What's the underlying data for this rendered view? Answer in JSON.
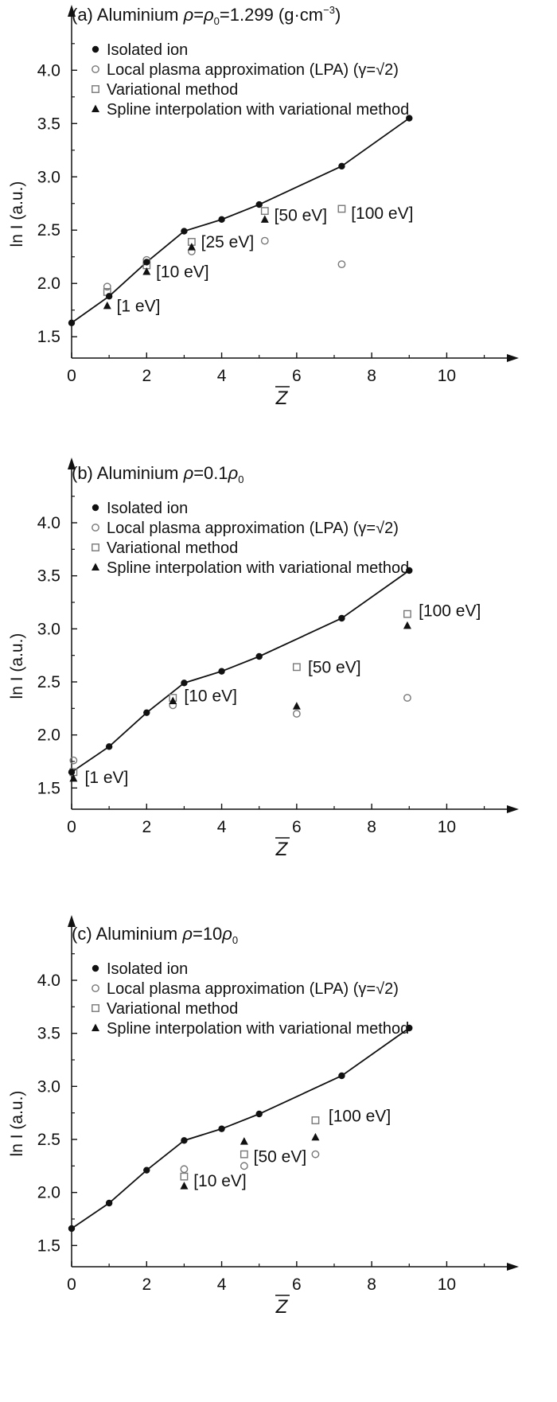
{
  "chart_data": [
    {
      "type": "scatter",
      "title_prefix": "(a) Aluminium",
      "title_formula": "=",
      "title_suffix": "=1.299 (g·cm",
      "title_exp": "−3",
      "title_close": ")",
      "rho_symbol": "ρ",
      "rho_sub": "0",
      "xlabel": "Z",
      "ylabel": "ln I (a.u.)",
      "xlim": [
        0,
        11.2
      ],
      "ylim": [
        1.3,
        4.45
      ],
      "xticks": [
        0,
        2,
        4,
        6,
        8,
        10
      ],
      "yticks": [
        "1.5",
        "2.0",
        "2.5",
        "3.0",
        "3.5",
        "4.0"
      ],
      "legend": {
        "isolated": "Isolated ion",
        "lpa": "Local plasma approximation (LPA) (γ=√2)",
        "variational": "Variational method",
        "spline": "Spline interpolation with variational method"
      },
      "series": {
        "isolated": [
          [
            0,
            1.63
          ],
          [
            1,
            1.88
          ],
          [
            2,
            2.2
          ],
          [
            3,
            2.49
          ],
          [
            4,
            2.6
          ],
          [
            5,
            2.74
          ],
          [
            7.2,
            3.1
          ],
          [
            9,
            3.55
          ]
        ],
        "lpa": [
          [
            0.95,
            1.97
          ],
          [
            2,
            2.22
          ],
          [
            3.2,
            2.3
          ],
          [
            5.15,
            2.4
          ],
          [
            7.2,
            2.18
          ]
        ],
        "variational": [
          [
            0.95,
            1.92
          ],
          [
            2,
            2.17
          ],
          [
            3.2,
            2.39
          ],
          [
            5.15,
            2.68
          ],
          [
            7.2,
            2.7
          ]
        ],
        "spline": [
          [
            0.95,
            1.79
          ],
          [
            2,
            2.11
          ],
          [
            3.2,
            2.34
          ],
          [
            5.15,
            2.6
          ]
        ]
      },
      "annotations": [
        {
          "text": "[1 eV]",
          "x": 1.2,
          "y": 1.79
        },
        {
          "text": "[10 eV]",
          "x": 2.25,
          "y": 2.11
        },
        {
          "text": "[25 eV]",
          "x": 3.45,
          "y": 2.39
        },
        {
          "text": "[50 eV]",
          "x": 5.4,
          "y": 2.64
        },
        {
          "text": "[100 eV]",
          "x": 7.45,
          "y": 2.66
        }
      ]
    },
    {
      "type": "scatter",
      "title_prefix": "(b) Aluminium",
      "title_formula": "=0.1",
      "rho_symbol": "ρ",
      "rho_sub": "0",
      "xlabel": "Z",
      "ylabel": "ln I (a.u.)",
      "xlim": [
        0,
        11.2
      ],
      "ylim": [
        1.3,
        4.45
      ],
      "xticks": [
        0,
        2,
        4,
        6,
        8,
        10
      ],
      "yticks": [
        "1.5",
        "2.0",
        "2.5",
        "3.0",
        "3.5",
        "4.0"
      ],
      "legend": {
        "isolated": "Isolated ion",
        "lpa": "Local plasma approximation (LPA) (γ=√2)",
        "variational": "Variational method",
        "spline": "Spline interpolation with variational method"
      },
      "series": {
        "isolated": [
          [
            0,
            1.65
          ],
          [
            1,
            1.89
          ],
          [
            2,
            2.21
          ],
          [
            3,
            2.49
          ],
          [
            4,
            2.6
          ],
          [
            5,
            2.74
          ],
          [
            7.2,
            3.1
          ],
          [
            9,
            3.55
          ]
        ],
        "lpa": [
          [
            0.05,
            1.76
          ],
          [
            2.7,
            2.28
          ],
          [
            6,
            2.2
          ],
          [
            8.95,
            2.35
          ]
        ],
        "variational": [
          [
            0.05,
            1.65
          ],
          [
            2.7,
            2.35
          ],
          [
            6,
            2.64
          ],
          [
            8.95,
            3.14
          ]
        ],
        "spline": [
          [
            0.05,
            1.59
          ],
          [
            2.7,
            2.32
          ],
          [
            6,
            2.27
          ],
          [
            8.95,
            3.03
          ]
        ]
      },
      "annotations": [
        {
          "text": "[1 eV]",
          "x": 0.35,
          "y": 1.6
        },
        {
          "text": "[10 eV]",
          "x": 3.0,
          "y": 2.37
        },
        {
          "text": "[50 eV]",
          "x": 6.3,
          "y": 2.64
        },
        {
          "text": "[100 eV]",
          "x": 9.25,
          "y": 3.17
        }
      ]
    },
    {
      "type": "scatter",
      "title_prefix": "(c) Aluminium",
      "title_formula": "=10",
      "rho_symbol": "ρ",
      "rho_sub": "0",
      "xlabel": "Z",
      "ylabel": "ln I (a.u.)",
      "xlim": [
        0,
        11.2
      ],
      "ylim": [
        1.3,
        4.45
      ],
      "xticks": [
        0,
        2,
        4,
        6,
        8,
        10
      ],
      "yticks": [
        "1.5",
        "2.0",
        "2.5",
        "3.0",
        "3.5",
        "4.0"
      ],
      "legend": {
        "isolated": "Isolated ion",
        "lpa": "Local plasma approximation (LPA) (γ=√2)",
        "variational": "Variational method",
        "spline": "Spline interpolation with variational method"
      },
      "series": {
        "isolated": [
          [
            0,
            1.66
          ],
          [
            1,
            1.9
          ],
          [
            2,
            2.21
          ],
          [
            3,
            2.49
          ],
          [
            4,
            2.6
          ],
          [
            5,
            2.74
          ],
          [
            7.2,
            3.1
          ],
          [
            9,
            3.55
          ]
        ],
        "lpa": [
          [
            3,
            2.22
          ],
          [
            4.6,
            2.25
          ],
          [
            6.5,
            2.36
          ]
        ],
        "variational": [
          [
            3,
            2.15
          ],
          [
            4.6,
            2.36
          ],
          [
            6.5,
            2.68
          ]
        ],
        "spline": [
          [
            3,
            2.06
          ],
          [
            4.6,
            2.48
          ],
          [
            6.5,
            2.52
          ]
        ]
      },
      "annotations": [
        {
          "text": "[10 eV]",
          "x": 3.25,
          "y": 2.11
        },
        {
          "text": "[50 eV]",
          "x": 4.85,
          "y": 2.34
        },
        {
          "text": "[100 eV]",
          "x": 6.85,
          "y": 2.72
        }
      ]
    }
  ]
}
